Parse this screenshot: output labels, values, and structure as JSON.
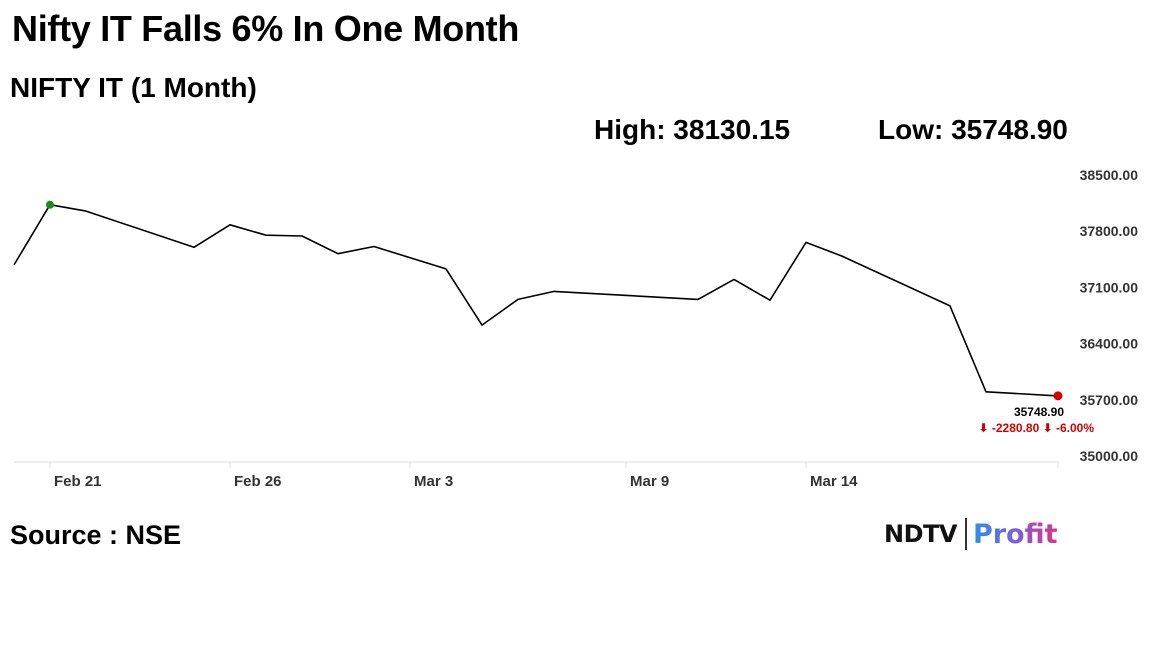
{
  "headline": "Nifty IT Falls 6% In One Month",
  "subheading": "NIFTY IT (1 Month)",
  "stats": {
    "high_text": "High: 38130.15",
    "low_text": "Low: 35748.90"
  },
  "source_text": "Source : NSE",
  "logo": {
    "part1": "NDTV",
    "part2": "Profit"
  },
  "colors": {
    "line": "#000000",
    "high_marker": "#1a8a1a",
    "low_marker": "#d40000",
    "change": "#d40000",
    "axis": "#dddddd"
  },
  "chart_data": {
    "type": "line",
    "title": "",
    "xlabel": "",
    "ylabel": "",
    "ylim": [
      35000,
      38500
    ],
    "y_ticks": [
      "38500.00",
      "37800.00",
      "37100.00",
      "36400.00",
      "35700.00",
      "35000.00"
    ],
    "x_tick_labels": [
      "Feb 21",
      "Feb 26",
      "Mar 3",
      "Mar 9",
      "Mar 14"
    ],
    "x_tick_dates": [
      "2025-02-21",
      "2025-02-26",
      "2025-03-03",
      "2025-03-09",
      "2025-03-14"
    ],
    "grid": false,
    "series": [
      {
        "x": [
          "2025-02-20",
          "2025-02-21",
          "2025-02-22",
          "2025-02-25",
          "2025-02-26",
          "2025-02-27",
          "2025-02-28",
          "2025-03-01",
          "2025-03-02",
          "2025-03-04",
          "2025-03-05",
          "2025-03-06",
          "2025-03-07",
          "2025-03-11",
          "2025-03-12",
          "2025-03-13",
          "2025-03-14",
          "2025-03-15",
          "2025-03-18",
          "2025-03-19",
          "2025-03-21"
        ],
        "y": [
          37380,
          38130.15,
          38050,
          37600,
          37880,
          37750,
          37740,
          37520,
          37610,
          37330,
          36630,
          36950,
          37050,
          36950,
          37200,
          36940,
          37660,
          37490,
          36870,
          35800,
          35748.9
        ]
      }
    ],
    "annotations": {
      "high_marker": "38130.15",
      "last_value": "35748.90",
      "change_text": "⬇ -2280.80 ⬇ -6.00%"
    }
  }
}
